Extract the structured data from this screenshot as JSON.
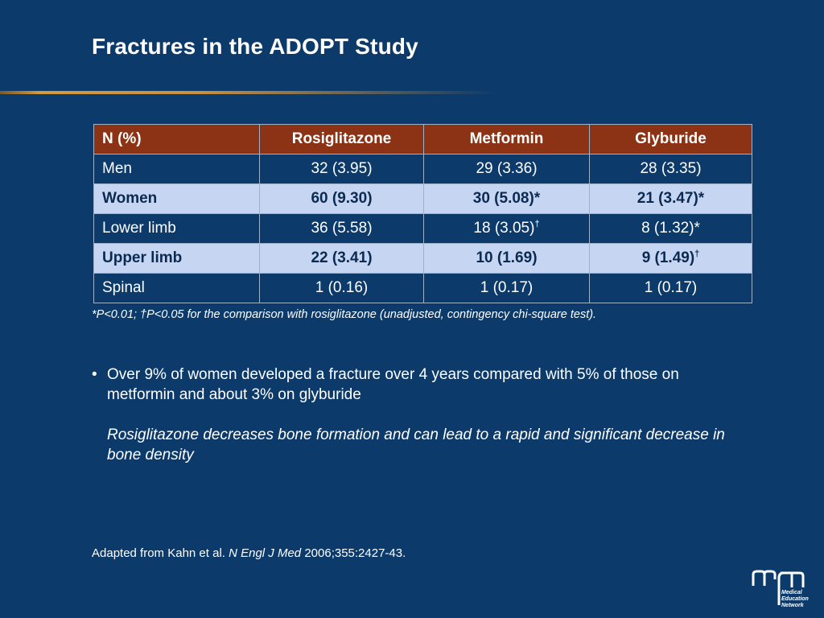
{
  "slide": {
    "title": "Fractures in the ADOPT Study"
  },
  "table": {
    "headers": [
      "N (%)",
      "Rosiglitazone",
      "Metformin",
      "Glyburide"
    ],
    "rows": [
      {
        "label": "Men",
        "rosiglitazone": "32 (3.95)",
        "metformin": "29 (3.36)",
        "glyburide": "28 (3.35)",
        "metformin_mark": "",
        "glyburide_mark": ""
      },
      {
        "label": "Women",
        "rosiglitazone": "60 (9.30)",
        "metformin": "30 (5.08)*",
        "glyburide": "21 (3.47)*",
        "metformin_mark": "",
        "glyburide_mark": ""
      },
      {
        "label": "Lower limb",
        "rosiglitazone": "36 (5.58)",
        "metformin": "18 (3.05)",
        "glyburide": "8 (1.32)*",
        "metformin_mark": "†",
        "glyburide_mark": ""
      },
      {
        "label": "Upper limb",
        "rosiglitazone": "22 (3.41)",
        "metformin": "10 (1.69)",
        "glyburide": "9 (1.49)",
        "metformin_mark": "",
        "glyburide_mark": "†"
      },
      {
        "label": "Spinal",
        "rosiglitazone": "1 (0.16)",
        "metformin": "1 (0.17)",
        "glyburide": "1 (0.17)",
        "metformin_mark": "",
        "glyburide_mark": ""
      }
    ]
  },
  "footnote": "*P<0.01; †P<0.05 for the comparison with rosiglitazone (unadjusted, contingency chi-square test).",
  "bullet": {
    "mark": "•",
    "text": "Over 9% of women developed a fracture over 4 years compared with 5% of those on metformin and about 3% on glyburide",
    "note": "Rosiglitazone decreases bone formation and can lead to a rapid and significant decrease in bone density"
  },
  "source": {
    "prefix": "Adapted from Kahn et al. ",
    "journal": "N Engl J Med",
    "suffix": " 2006;355:2427-43."
  },
  "logo": {
    "icon": "mcn-logo-icon",
    "lines": [
      "Medical",
      "Education",
      "Network"
    ],
    "accent_color": "#ffffff"
  }
}
